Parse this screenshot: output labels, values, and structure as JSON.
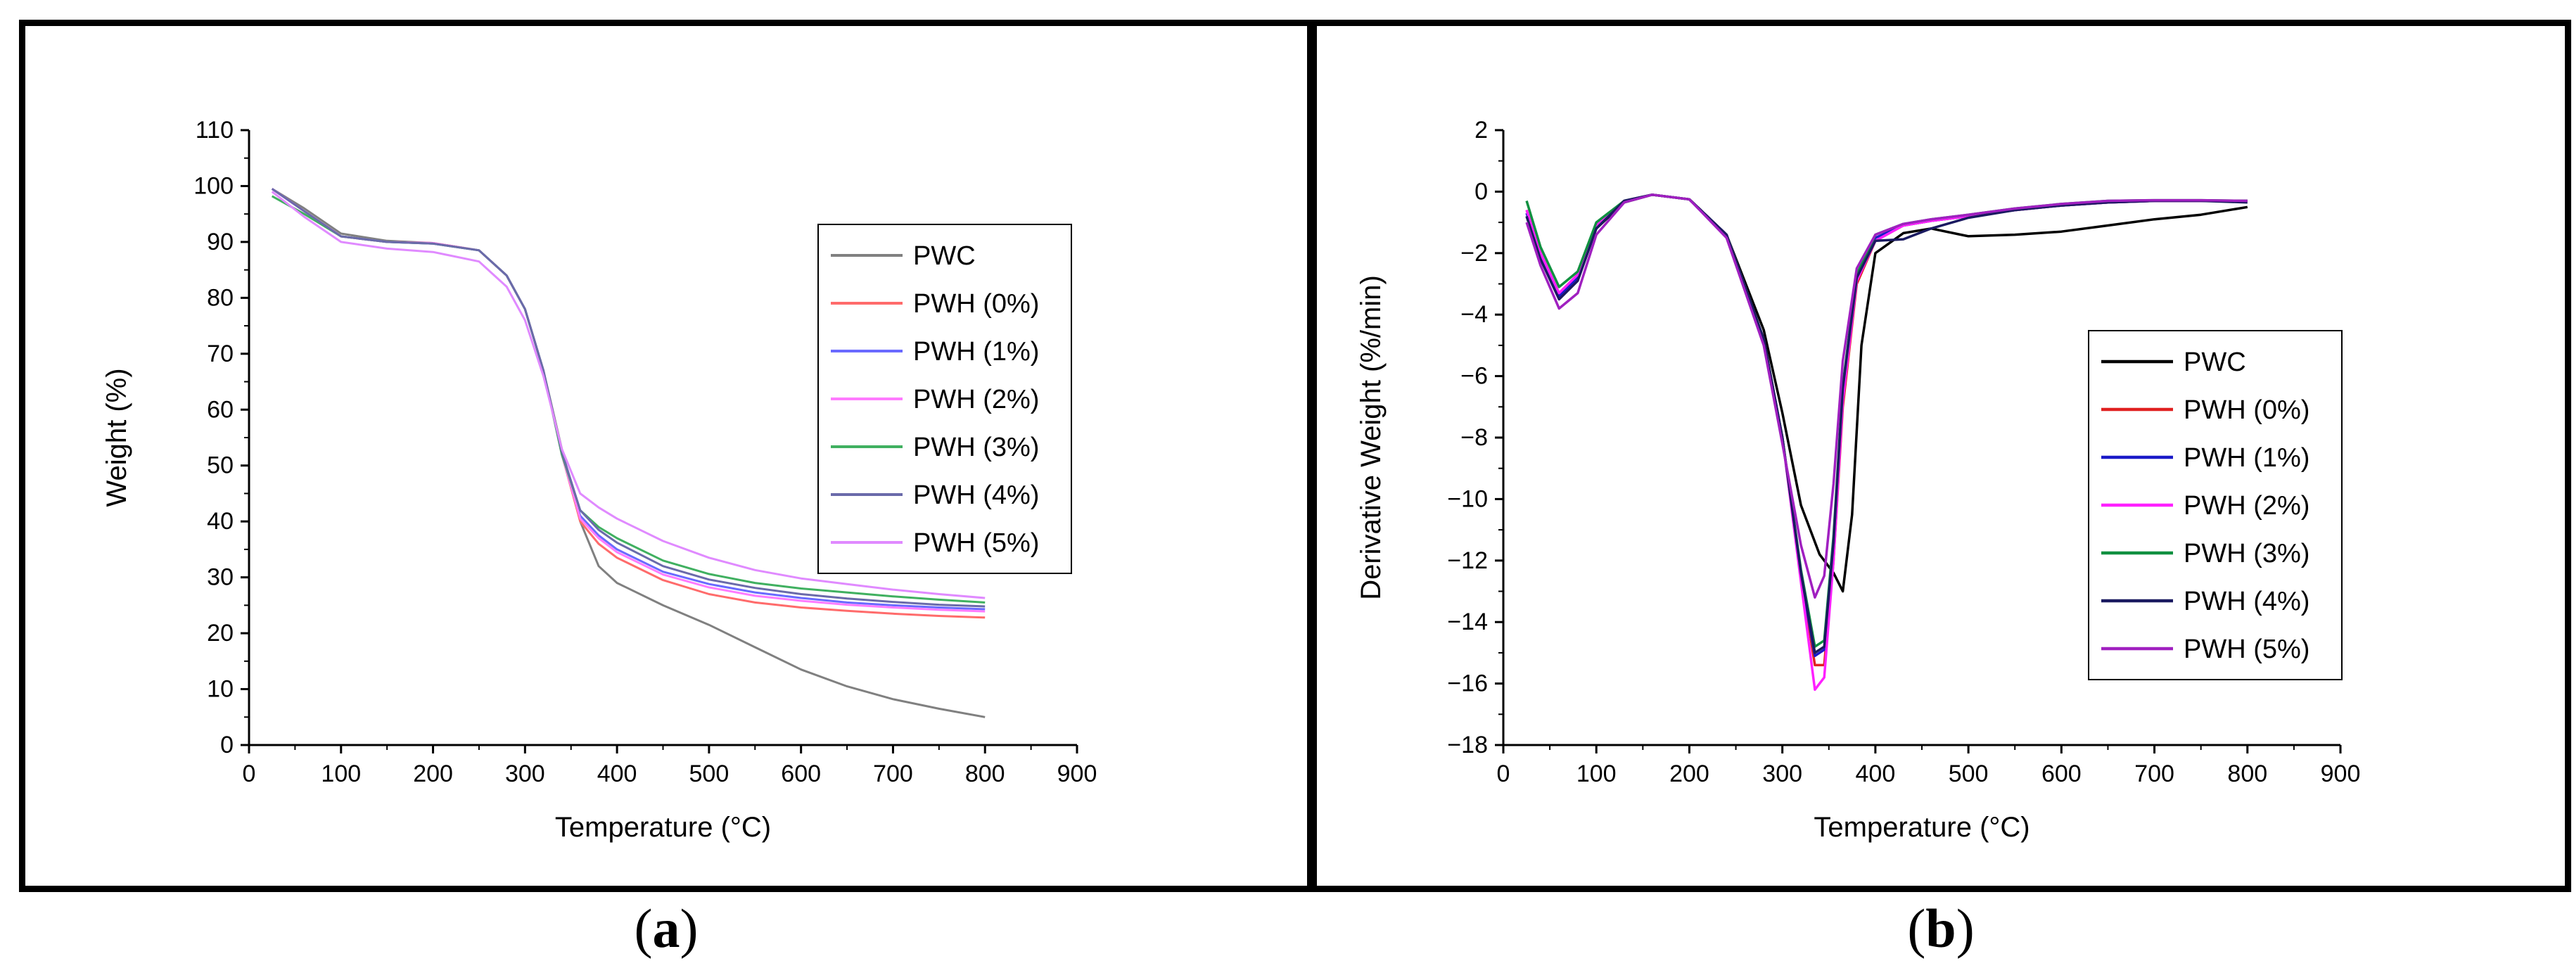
{
  "colors": {
    "PWC": "#808080",
    "PWH (0%)": "#ff6b6b",
    "PWH (1%)": "#6a6aff",
    "PWH (2%)": "#ff7bff",
    "PWH (3%)": "#40b060",
    "PWH (4%)": "#6a6aaa",
    "PWH (5%)": "#e08aff"
  },
  "captions": {
    "a": {
      "open": "(",
      "letter": "a",
      "close": ")"
    },
    "b": {
      "open": "(",
      "letter": "b",
      "close": ")"
    }
  },
  "chart_data": [
    {
      "id": "a",
      "type": "line",
      "title": "",
      "xlabel": "Temperature (°C)",
      "ylabel": "Weight (%)",
      "xlim": [
        0,
        900
      ],
      "ylim": [
        0,
        110
      ],
      "xticks": [
        0,
        100,
        200,
        300,
        400,
        500,
        600,
        700,
        800,
        900
      ],
      "yticks": [
        0,
        10,
        20,
        30,
        40,
        50,
        60,
        70,
        80,
        90,
        100,
        110
      ],
      "legend_position": "center-right",
      "series": [
        {
          "name": "PWC",
          "color": "#808080",
          "x": [
            25,
            60,
            100,
            150,
            200,
            250,
            280,
            300,
            320,
            340,
            360,
            380,
            400,
            450,
            500,
            550,
            600,
            650,
            700,
            750,
            800
          ],
          "y": [
            99.5,
            96,
            91.5,
            90.2,
            89.8,
            88.5,
            84,
            78,
            67,
            53,
            40,
            32,
            29,
            25,
            21.5,
            17.5,
            13.5,
            10.5,
            8.2,
            6.5,
            5
          ]
        },
        {
          "name": "PWH (0%)",
          "color": "#ff6b6b",
          "x": [
            25,
            60,
            100,
            150,
            200,
            250,
            280,
            300,
            320,
            340,
            360,
            380,
            400,
            450,
            500,
            550,
            600,
            650,
            700,
            750,
            800
          ],
          "y": [
            99.5,
            95.5,
            91,
            90,
            89.8,
            88.5,
            84,
            78,
            67,
            52,
            40,
            36,
            33.5,
            29.5,
            27,
            25.5,
            24.6,
            24,
            23.5,
            23.1,
            22.8
          ]
        },
        {
          "name": "PWH (1%)",
          "color": "#6a6aff",
          "x": [
            25,
            60,
            100,
            150,
            200,
            250,
            280,
            300,
            320,
            340,
            360,
            380,
            400,
            450,
            500,
            550,
            600,
            650,
            700,
            750,
            800
          ],
          "y": [
            99.5,
            95.5,
            91,
            90,
            89.7,
            88.5,
            84,
            78,
            67,
            52,
            41,
            37.5,
            35,
            31,
            28.8,
            27.3,
            26.3,
            25.5,
            25,
            24.6,
            24.3
          ]
        },
        {
          "name": "PWH (2%)",
          "color": "#ff7bff",
          "x": [
            25,
            60,
            100,
            150,
            200,
            250,
            280,
            300,
            320,
            340,
            360,
            380,
            400,
            450,
            500,
            550,
            600,
            650,
            700,
            750,
            800
          ],
          "y": [
            99.5,
            95.5,
            91,
            90,
            89.8,
            88.5,
            84,
            78,
            67,
            52,
            40.5,
            37,
            34.5,
            30.5,
            28.2,
            26.7,
            25.8,
            25.1,
            24.6,
            24.2,
            23.9
          ]
        },
        {
          "name": "PWH (3%)",
          "color": "#40b060",
          "x": [
            25,
            60,
            100,
            150,
            200,
            250,
            280,
            300,
            320,
            340,
            360,
            380,
            400,
            450,
            500,
            550,
            600,
            650,
            700,
            750,
            800
          ],
          "y": [
            98.2,
            95,
            91,
            90,
            89.7,
            88.5,
            84,
            78,
            67,
            52,
            42,
            39,
            37,
            33,
            30.6,
            29,
            28,
            27.3,
            26.6,
            26,
            25.5
          ]
        },
        {
          "name": "PWH (4%)",
          "color": "#6a6aaa",
          "x": [
            25,
            60,
            100,
            150,
            200,
            250,
            280,
            300,
            320,
            340,
            360,
            380,
            400,
            450,
            500,
            550,
            600,
            650,
            700,
            750,
            800
          ],
          "y": [
            99.5,
            95.5,
            91,
            90,
            89.7,
            88.5,
            84,
            78,
            67,
            52.5,
            42,
            38.5,
            36.2,
            32,
            29.6,
            28.1,
            27,
            26.2,
            25.6,
            25.1,
            24.8
          ]
        },
        {
          "name": "PWH (5%)",
          "color": "#e08aff",
          "x": [
            25,
            60,
            100,
            150,
            200,
            250,
            280,
            300,
            320,
            340,
            360,
            380,
            400,
            450,
            500,
            550,
            600,
            650,
            700,
            750,
            800
          ],
          "y": [
            99,
            94.5,
            90,
            88.8,
            88.2,
            86.5,
            82,
            76,
            66,
            53,
            45,
            42.5,
            40.5,
            36.5,
            33.5,
            31.3,
            29.8,
            28.8,
            27.8,
            27,
            26.3
          ]
        }
      ]
    },
    {
      "id": "b",
      "type": "line",
      "title": "",
      "xlabel": "Temperature (°C)",
      "ylabel": "Derivative Weight (%/min)",
      "xlim": [
        0,
        900
      ],
      "ylim": [
        -18,
        2
      ],
      "xticks": [
        0,
        100,
        200,
        300,
        400,
        500,
        600,
        700,
        800,
        900
      ],
      "yticks": [
        -18,
        -16,
        -14,
        -12,
        -10,
        -8,
        -6,
        -4,
        -2,
        0,
        2
      ],
      "legend_position": "center-right",
      "series": [
        {
          "name": "PWC",
          "color": "#000000",
          "x": [
            25,
            40,
            60,
            80,
            100,
            130,
            160,
            200,
            240,
            280,
            300,
            320,
            340,
            355,
            365,
            375,
            385,
            400,
            430,
            460,
            500,
            550,
            600,
            650,
            700,
            750,
            800
          ],
          "y": [
            -0.8,
            -2.2,
            -3.4,
            -2.8,
            -1.2,
            -0.35,
            -0.1,
            -0.25,
            -1.4,
            -4.5,
            -7.2,
            -10.2,
            -11.8,
            -12.4,
            -13,
            -10.5,
            -5,
            -2,
            -1.35,
            -1.2,
            -1.45,
            -1.4,
            -1.3,
            -1.1,
            -0.9,
            -0.75,
            -0.5
          ]
        },
        {
          "name": "PWH (0%)",
          "color": "#e02020",
          "x": [
            25,
            40,
            60,
            80,
            100,
            130,
            160,
            200,
            240,
            280,
            300,
            320,
            335,
            345,
            355,
            365,
            380,
            400,
            430,
            460,
            500,
            550,
            600,
            650,
            700,
            750,
            800
          ],
          "y": [
            -0.6,
            -2,
            -3.3,
            -2.7,
            -1.1,
            -0.3,
            -0.1,
            -0.25,
            -1.4,
            -4.8,
            -8,
            -12.5,
            -15.4,
            -15.4,
            -12,
            -7,
            -3,
            -1.6,
            -1.1,
            -0.95,
            -0.8,
            -0.6,
            -0.45,
            -0.35,
            -0.3,
            -0.3,
            -0.3
          ]
        },
        {
          "name": "PWH (1%)",
          "color": "#1a1ac8",
          "x": [
            25,
            40,
            60,
            80,
            100,
            130,
            160,
            200,
            240,
            280,
            300,
            320,
            335,
            345,
            355,
            365,
            380,
            400,
            430,
            460,
            500,
            550,
            600,
            650,
            700,
            750,
            800
          ],
          "y": [
            -0.7,
            -2.1,
            -3.4,
            -2.8,
            -1.1,
            -0.3,
            -0.1,
            -0.25,
            -1.4,
            -4.8,
            -8,
            -12.5,
            -15.1,
            -14.9,
            -11.5,
            -6.5,
            -2.8,
            -1.5,
            -1.1,
            -0.95,
            -0.8,
            -0.6,
            -0.45,
            -0.35,
            -0.3,
            -0.3,
            -0.3
          ]
        },
        {
          "name": "PWH (2%)",
          "color": "#ff20ff",
          "x": [
            25,
            40,
            60,
            80,
            100,
            130,
            160,
            200,
            240,
            280,
            300,
            320,
            335,
            345,
            355,
            365,
            380,
            400,
            430,
            460,
            500,
            550,
            600,
            650,
            700,
            750,
            800
          ],
          "y": [
            -0.6,
            -2,
            -3.3,
            -2.7,
            -1.1,
            -0.3,
            -0.1,
            -0.25,
            -1.4,
            -4.8,
            -8,
            -12.7,
            -16.2,
            -15.8,
            -12,
            -6.8,
            -2.9,
            -1.6,
            -1.1,
            -0.95,
            -0.8,
            -0.6,
            -0.45,
            -0.35,
            -0.3,
            -0.3,
            -0.3
          ]
        },
        {
          "name": "PWH (3%)",
          "color": "#109040",
          "x": [
            25,
            40,
            60,
            80,
            100,
            130,
            160,
            200,
            240,
            280,
            300,
            320,
            335,
            345,
            355,
            365,
            380,
            400,
            430,
            460,
            500,
            550,
            600,
            650,
            700,
            750,
            800
          ],
          "y": [
            -0.3,
            -1.8,
            -3.1,
            -2.6,
            -1,
            -0.3,
            -0.1,
            -0.25,
            -1.4,
            -4.8,
            -8,
            -12.3,
            -14.8,
            -14.6,
            -11.2,
            -6.3,
            -2.7,
            -1.4,
            -1.05,
            -0.9,
            -0.75,
            -0.55,
            -0.4,
            -0.3,
            -0.28,
            -0.28,
            -0.3
          ]
        },
        {
          "name": "PWH (4%)",
          "color": "#1a1a60",
          "x": [
            25,
            40,
            60,
            80,
            100,
            130,
            160,
            200,
            240,
            280,
            300,
            320,
            335,
            345,
            355,
            365,
            380,
            400,
            430,
            460,
            500,
            550,
            600,
            650,
            700,
            750,
            800
          ],
          "y": [
            -0.8,
            -2.2,
            -3.5,
            -2.9,
            -1.2,
            -0.3,
            -0.1,
            -0.25,
            -1.4,
            -4.8,
            -8,
            -12.4,
            -15,
            -14.8,
            -11.4,
            -6.4,
            -2.8,
            -1.6,
            -1.55,
            -1.2,
            -0.85,
            -0.6,
            -0.45,
            -0.35,
            -0.3,
            -0.3,
            -0.35
          ]
        },
        {
          "name": "PWH (5%)",
          "color": "#a020c0",
          "x": [
            25,
            40,
            60,
            80,
            100,
            130,
            160,
            200,
            240,
            280,
            300,
            320,
            335,
            345,
            355,
            365,
            380,
            400,
            430,
            460,
            500,
            550,
            600,
            650,
            700,
            750,
            800
          ],
          "y": [
            -1,
            -2.4,
            -3.8,
            -3.3,
            -1.4,
            -0.35,
            -0.1,
            -0.25,
            -1.5,
            -5,
            -8.2,
            -11.5,
            -13.2,
            -12.5,
            -9.5,
            -5.5,
            -2.5,
            -1.4,
            -1.05,
            -0.9,
            -0.75,
            -0.55,
            -0.4,
            -0.3,
            -0.28,
            -0.28,
            -0.3
          ]
        }
      ]
    }
  ]
}
